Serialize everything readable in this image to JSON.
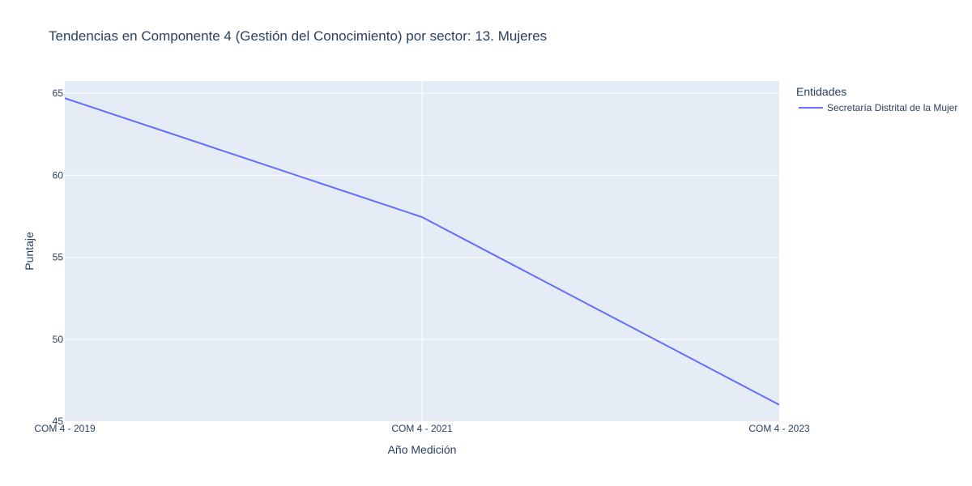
{
  "colors": {
    "plot_background": "#e5ecf6",
    "grid": "#ffffff",
    "text": "#2a3f5f",
    "series": [
      "#636efa"
    ]
  },
  "chart_data": {
    "type": "line",
    "title": "Tendencias en Componente 4 (Gestión del Conocimiento) por sector: 13. Mujeres",
    "xlabel": "Año Medición",
    "ylabel": "Puntaje",
    "categories": [
      "COM 4 - 2019",
      "COM 4 - 2021",
      "COM 4 - 2023"
    ],
    "ylim": [
      45,
      65.75
    ],
    "yticks": [
      45,
      50,
      55,
      60,
      65
    ],
    "grid": true,
    "legend": {
      "title": "Entidades",
      "position": "right"
    },
    "series": [
      {
        "name": "Secretaría Distrital de la Mujer",
        "values": [
          64.7,
          57.45,
          46.0
        ]
      }
    ]
  }
}
